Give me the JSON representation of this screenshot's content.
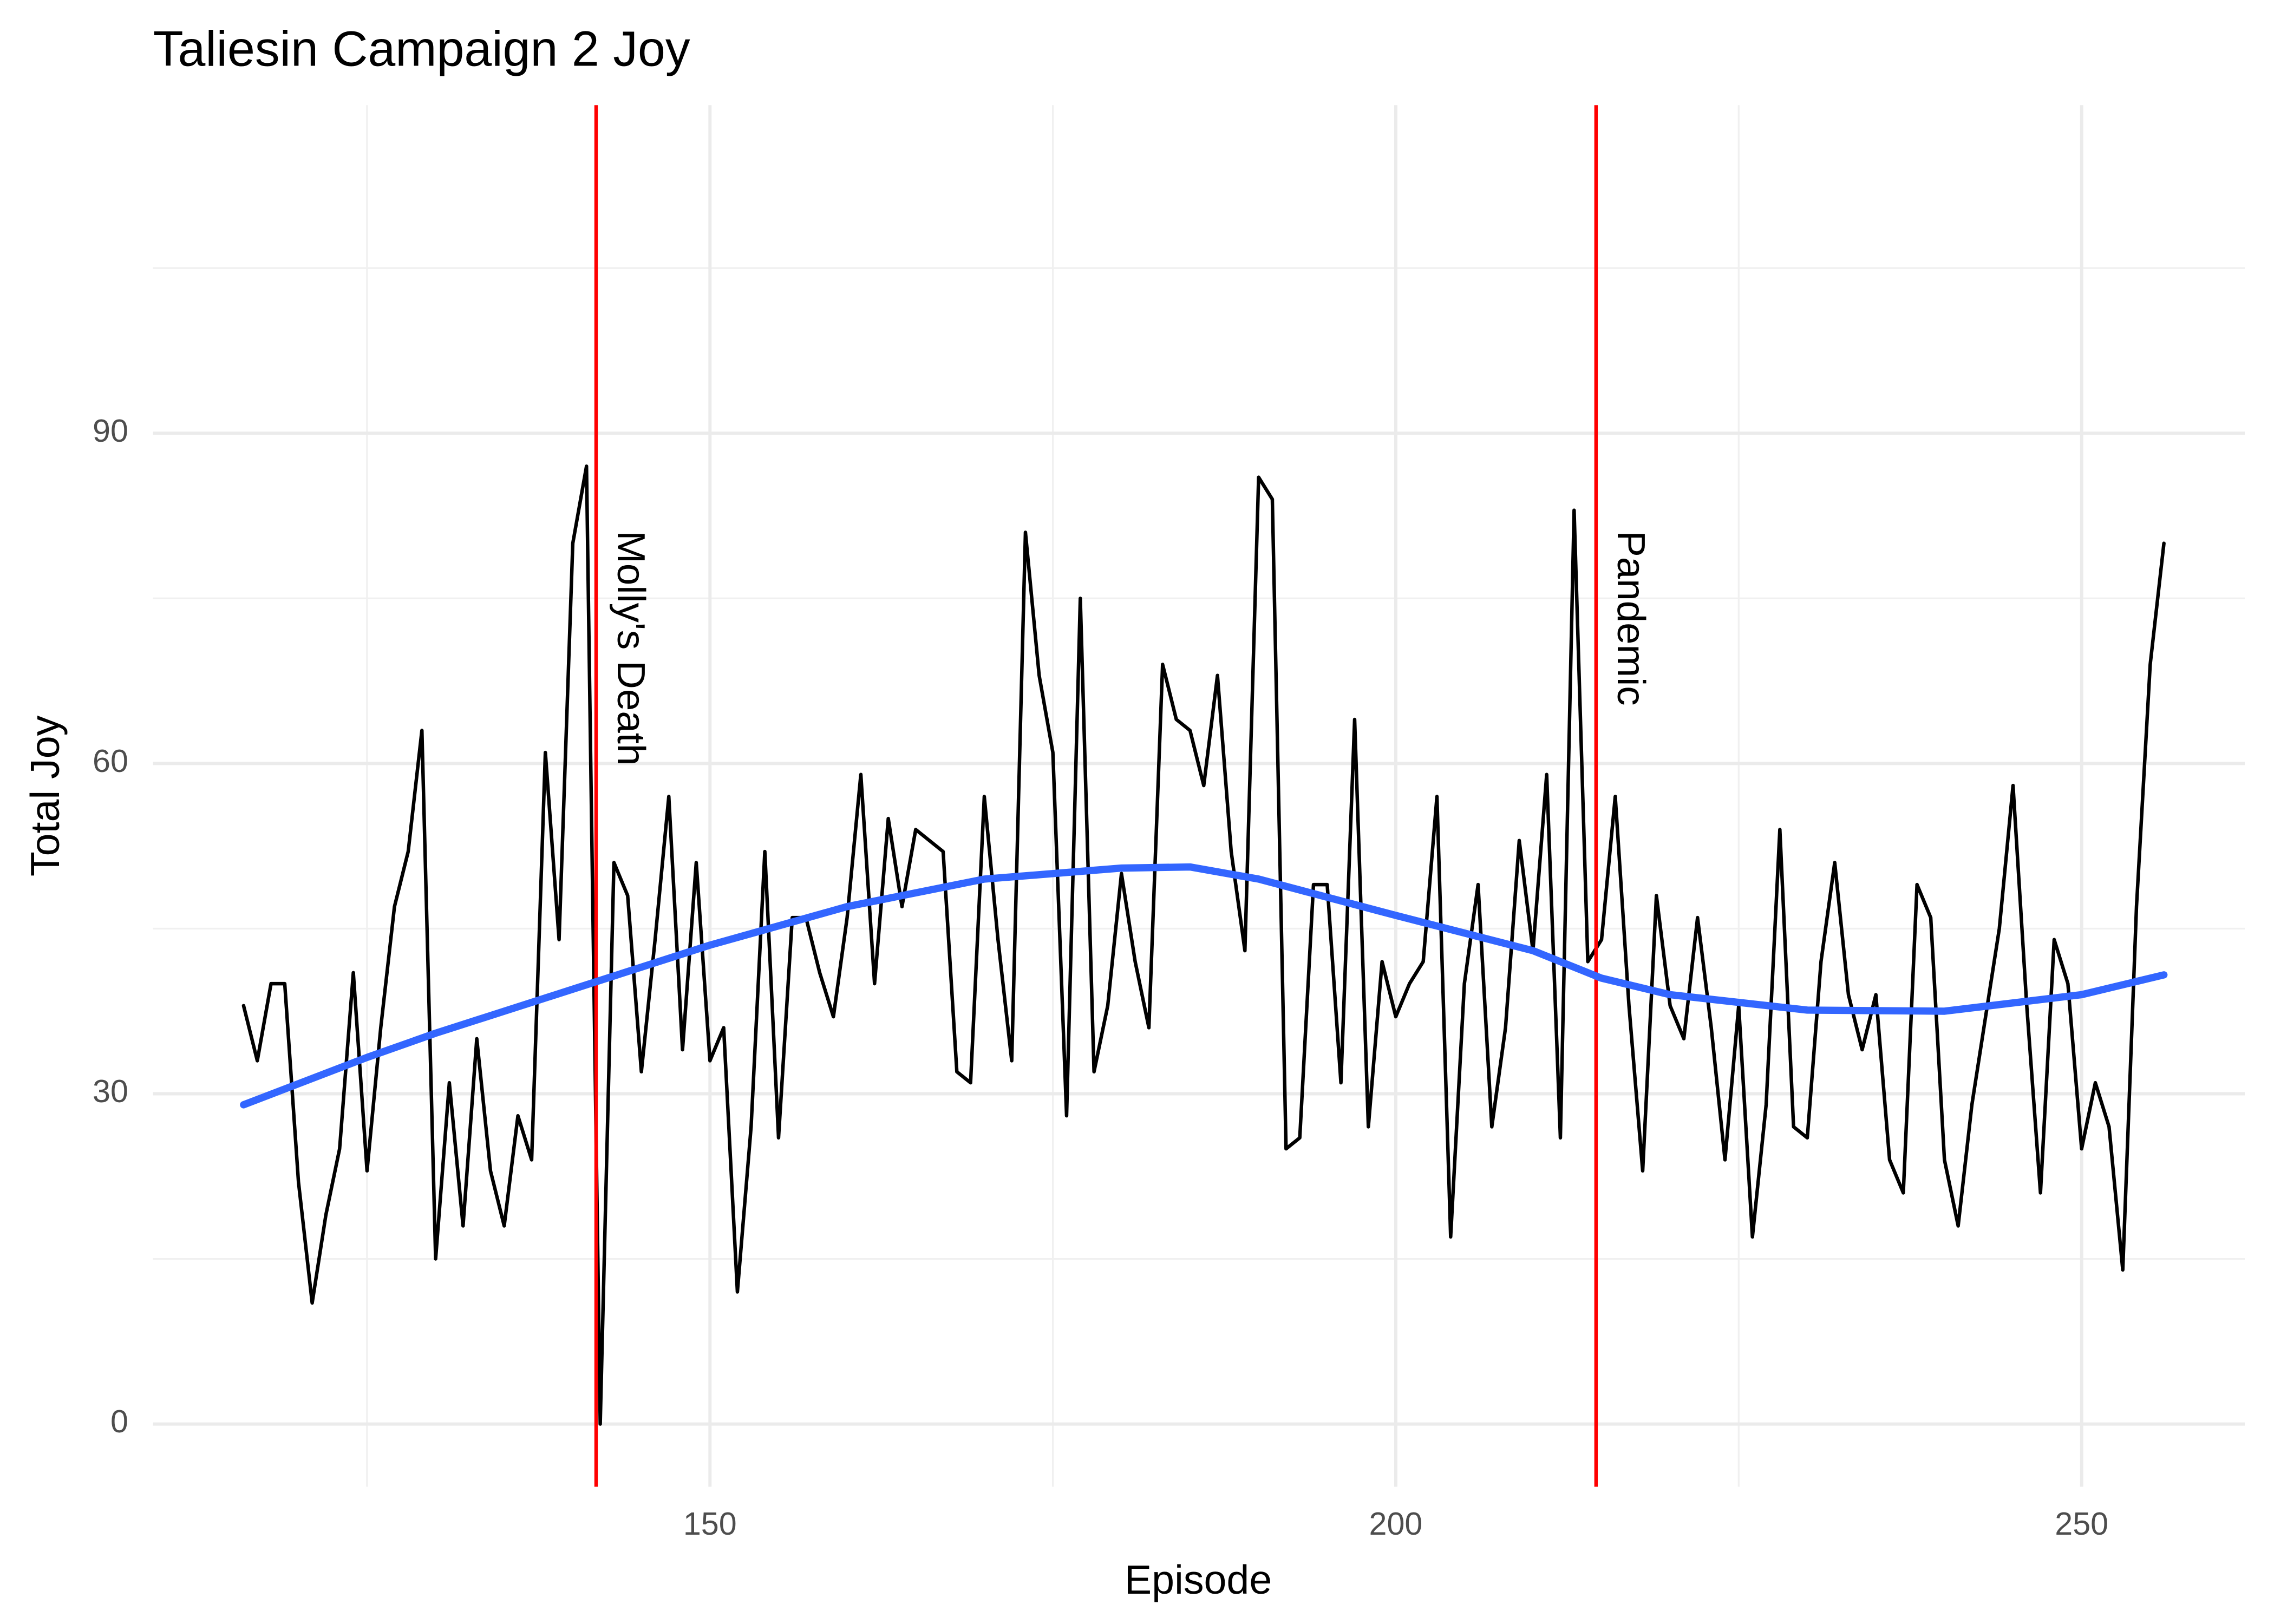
{
  "chart_data": {
    "type": "line",
    "title": "Taliesin Campaign 2 Joy",
    "x_label": "Episode",
    "y_label": "Total Joy",
    "xlim": [
      109.4,
      261.9
    ],
    "ylim": [
      -5.7,
      119.8
    ],
    "xticks": [
      150,
      200,
      250
    ],
    "yticks": [
      0,
      30,
      60,
      90
    ],
    "xminor": [
      125,
      175,
      225
    ],
    "yminor": [
      15,
      45,
      75,
      105
    ],
    "grid": true,
    "series": [
      {
        "color": "#000000",
        "smoothed": false,
        "x": [
          116,
          117,
          118,
          119,
          120,
          121,
          122,
          123,
          124,
          125,
          126,
          127,
          128,
          129,
          130,
          131,
          132,
          133,
          134,
          135,
          136,
          137,
          138,
          139,
          140,
          141,
          142,
          143,
          144,
          145,
          146,
          147,
          148,
          149,
          150,
          151,
          152,
          153,
          154,
          155,
          156,
          157,
          158,
          159,
          160,
          161,
          162,
          163,
          164,
          165,
          166,
          167,
          168,
          169,
          170,
          171,
          172,
          173,
          174,
          175,
          176,
          177,
          178,
          179,
          180,
          181,
          182,
          183,
          184,
          185,
          186,
          187,
          188,
          189,
          190,
          191,
          192,
          193,
          194,
          195,
          196,
          197,
          198,
          199,
          200,
          201,
          202,
          203,
          204,
          205,
          206,
          207,
          208,
          209,
          210,
          211,
          212,
          213,
          214,
          215,
          216,
          217,
          218,
          219,
          220,
          221,
          222,
          223,
          224,
          225,
          226,
          227,
          228,
          229,
          230,
          231,
          232,
          233,
          234,
          235,
          236,
          237,
          238,
          239,
          240,
          241,
          242,
          243,
          244,
          245,
          246,
          247,
          248,
          249,
          250,
          251,
          252,
          253,
          254,
          255,
          256
        ],
        "values": [
          38,
          33,
          40,
          40,
          22,
          11,
          19,
          25,
          41,
          23,
          36,
          47,
          52,
          63,
          15,
          31,
          18,
          35,
          23,
          18,
          28,
          24,
          61,
          44,
          80,
          87,
          0,
          51,
          48,
          32,
          44,
          57,
          34,
          51,
          33,
          36,
          12,
          27,
          52,
          26,
          46,
          46,
          41,
          37,
          46,
          59,
          40,
          55,
          47,
          54,
          53,
          52,
          32,
          31,
          57,
          44,
          33,
          81,
          68,
          61,
          28,
          75,
          32,
          38,
          50,
          42,
          36,
          69,
          64,
          63,
          58,
          68,
          52,
          43,
          86,
          84,
          25,
          26,
          49,
          49,
          31,
          64,
          27,
          42,
          37,
          40,
          42,
          57,
          17,
          40,
          49,
          27,
          36,
          53,
          43,
          59,
          26,
          83,
          42,
          44,
          57,
          38,
          23,
          48,
          38,
          35,
          46,
          36,
          24,
          38,
          17,
          29,
          54,
          27,
          26,
          42,
          51,
          39,
          34,
          39,
          24,
          21,
          49,
          46,
          24,
          18,
          29,
          37,
          45,
          58,
          38,
          21,
          44,
          40,
          25,
          31,
          27,
          14,
          47,
          69,
          80
        ]
      },
      {
        "color": "#3366ff",
        "smoothed": true,
        "x": [
          116,
          125,
          130,
          140,
          150,
          160,
          170,
          180,
          185,
          190,
          200,
          210,
          215,
          220,
          230,
          240,
          250,
          256
        ],
        "values": [
          29,
          33.3,
          35.5,
          39.5,
          43.5,
          47,
          49.5,
          50.5,
          50.6,
          49.5,
          46.2,
          43,
          40.5,
          39,
          37.6,
          37.5,
          39,
          40.8
        ]
      }
    ],
    "vlines": [
      {
        "x": 141.7,
        "label": "Molly's Death",
        "color": "#ff0000"
      },
      {
        "x": 214.6,
        "label": "Pandemic",
        "color": "#ff0000"
      }
    ]
  }
}
